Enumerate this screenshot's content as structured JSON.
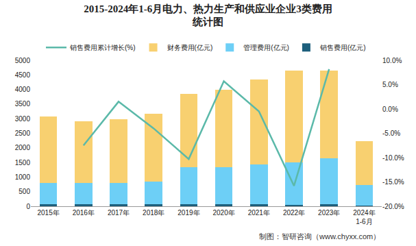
{
  "chart_data": {
    "type": "bar",
    "title": "2015-2024年1-6月电力、热力生产和供应业企业3类费用\n统计图",
    "categories": [
      "2015年",
      "2016年",
      "2017年",
      "2018年",
      "2019年",
      "2020年",
      "2021年",
      "2022年",
      "2023年",
      "2024年\n1-6月"
    ],
    "stacked": true,
    "grid": false,
    "legend": "top",
    "series": [
      {
        "name": "销售费用(亿元)",
        "type": "bar",
        "color": "#1d5f7c",
        "values": [
          80,
          70,
          70,
          65,
          60,
          60,
          60,
          55,
          65,
          35
        ]
      },
      {
        "name": "管理费用(亿元)",
        "type": "bar",
        "color": "#6dcff6",
        "values": [
          720,
          730,
          730,
          785,
          1280,
          1280,
          1380,
          1445,
          1585,
          685
        ]
      },
      {
        "name": "财务费用(亿元)",
        "type": "bar",
        "color": "#f8d070",
        "values": [
          2280,
          2120,
          2170,
          2310,
          2500,
          2660,
          2900,
          3140,
          2990,
          1520
        ]
      },
      {
        "name": "销售费用累计增长(%)",
        "type": "line",
        "axis": "y2",
        "color": "#5bb9a9",
        "values": [
          null,
          -7.5,
          1.5,
          -4.0,
          -10.3,
          5.7,
          -0.5,
          -15.8,
          8.2,
          null
        ]
      }
    ],
    "ylim": [
      0,
      5000
    ],
    "yticks": [
      0,
      500,
      1000,
      1500,
      2000,
      2500,
      3000,
      3500,
      4000,
      4500,
      5000
    ],
    "y2lim": [
      -20,
      10
    ],
    "y2ticks": [
      {
        "value": -20,
        "label": "-20.0%"
      },
      {
        "value": -15,
        "label": "-15.0%"
      },
      {
        "value": -10,
        "label": "-10.0%"
      },
      {
        "value": -5,
        "label": "-5.0%"
      },
      {
        "value": 0,
        "label": "0.0%"
      },
      {
        "value": 5,
        "label": "5.0%"
      },
      {
        "value": 10,
        "label": "10.0%"
      }
    ],
    "annotations": [
      "制图：智研咨询（www.chyxx.com）"
    ]
  }
}
